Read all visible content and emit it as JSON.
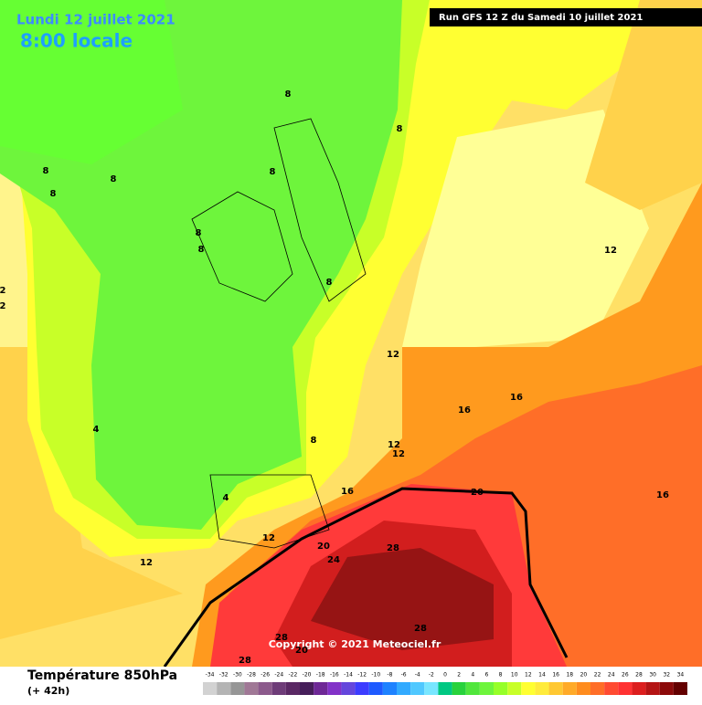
{
  "header": {
    "date": "Lundi 12 juillet 2021",
    "time": "8:00 locale",
    "run": "Run GFS 12 Z du Samedi 10 juillet 2021"
  },
  "copyright": "Copyright © 2021 Meteociel.fr",
  "footer": {
    "title": "Température 850hPa",
    "lead": "(+ 42h)"
  },
  "legend": {
    "values": [
      -34,
      -32,
      -30,
      -28,
      -26,
      -24,
      -22,
      -20,
      -18,
      -16,
      -14,
      -12,
      -10,
      -8,
      -6,
      -4,
      -2,
      0,
      2,
      4,
      6,
      8,
      10,
      12,
      14,
      16,
      18,
      20,
      22,
      24,
      26,
      28,
      30,
      32,
      34
    ],
    "colors": [
      "#d2d2d2",
      "#b4b4b4",
      "#969696",
      "#a07896",
      "#8c5a8c",
      "#6e3c78",
      "#5a2864",
      "#461e5a",
      "#6e2896",
      "#8232c8",
      "#6446dc",
      "#3c3cff",
      "#1e5aff",
      "#1e82ff",
      "#32aaff",
      "#50c8ff",
      "#78e6ff",
      "#00c882",
      "#28d23c",
      "#50e63c",
      "#6ef53c",
      "#96ff28",
      "#c8ff28",
      "#ffff32",
      "#ffeb3c",
      "#ffc832",
      "#ffaa28",
      "#ff8c1e",
      "#ff6e28",
      "#ff4b32",
      "#ff3232",
      "#dc1e1e",
      "#b41414",
      "#8c0a0a",
      "#640000"
    ]
  },
  "contour_labels": [
    "8",
    "8",
    "8",
    "8",
    "8",
    "8",
    "8",
    "8",
    "8",
    "12",
    "2",
    "2",
    "12",
    "16",
    "16",
    "4",
    "8",
    "12",
    "12",
    "16",
    "20",
    "4",
    "16",
    "12",
    "20",
    "24",
    "28",
    "12",
    "28",
    "20",
    "28",
    "28"
  ]
}
